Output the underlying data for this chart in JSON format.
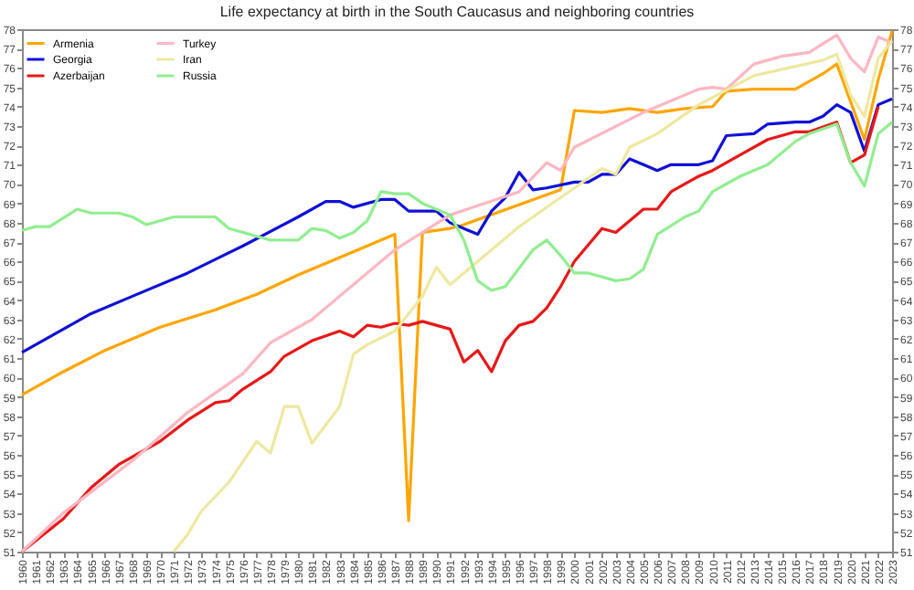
{
  "chart_data": {
    "type": "line",
    "title": "Life expectancy at birth in the South Caucasus and neighboring countries",
    "xlim": [
      1960,
      2023
    ],
    "xticks": [
      1960,
      1961,
      1962,
      1963,
      1964,
      1965,
      1966,
      1967,
      1968,
      1969,
      1970,
      1971,
      1972,
      1973,
      1974,
      1975,
      1976,
      1977,
      1978,
      1979,
      1980,
      1981,
      1982,
      1983,
      1984,
      1985,
      1986,
      1987,
      1988,
      1989,
      1990,
      1991,
      1992,
      1993,
      1994,
      1995,
      1996,
      1997,
      1998,
      1999,
      2000,
      2001,
      2002,
      2003,
      2004,
      2005,
      2006,
      2007,
      2008,
      2009,
      2010,
      2011,
      2012,
      2013,
      2014,
      2015,
      2016,
      2017,
      2018,
      2019,
      2020,
      2021,
      2022,
      2023
    ],
    "ylim": [
      51,
      78
    ],
    "yticks": [
      51,
      52,
      53,
      54,
      55,
      56,
      57,
      58,
      59,
      60,
      61,
      62,
      63,
      64,
      65,
      66,
      67,
      68,
      69,
      70,
      71,
      72,
      73,
      74,
      75,
      76,
      77,
      78
    ],
    "y2lim": [
      51,
      78
    ],
    "y2ticks": [
      51,
      52,
      53,
      54,
      55,
      56,
      57,
      58,
      59,
      60,
      61,
      62,
      63,
      64,
      65,
      66,
      67,
      68,
      69,
      70,
      71,
      72,
      73,
      74,
      75,
      76,
      77,
      78
    ],
    "legend": "top left",
    "series": [
      {
        "name": "Armenia",
        "color": "#ffa500",
        "x": [
          1960,
          1963,
          1966,
          1970,
          1974,
          1977,
          1980,
          1983,
          1985,
          1987,
          1988,
          1989,
          1991,
          1992,
          1999,
          2000,
          2002,
          2004,
          2006,
          2008,
          2010,
          2011,
          2013,
          2016,
          2017,
          2018,
          2019,
          2021,
          2022,
          2023
        ],
        "values": [
          59.1,
          60.3,
          61.4,
          62.6,
          63.5,
          64.3,
          65.3,
          66.2,
          66.8,
          67.4,
          52.6,
          67.5,
          67.7,
          67.9,
          69.7,
          73.8,
          73.7,
          73.9,
          73.7,
          73.9,
          74.0,
          74.8,
          74.9,
          74.9,
          75.3,
          75.7,
          76.2,
          72.3,
          75.4,
          77.9
        ]
      },
      {
        "name": "Georgia",
        "color": "#1010d8",
        "x": [
          1960,
          1965,
          1968,
          1972,
          1976,
          1980,
          1982,
          1983,
          1984,
          1986,
          1987,
          1988,
          1990,
          1991,
          1993,
          1994,
          1995,
          1996,
          1997,
          1998,
          2000,
          2001,
          2002,
          2003,
          2004,
          2005,
          2006,
          2007,
          2009,
          2010,
          2011,
          2013,
          2014,
          2016,
          2017,
          2018,
          2019,
          2020,
          2021,
          2022,
          2023
        ],
        "values": [
          61.3,
          63.3,
          64.2,
          65.4,
          66.8,
          68.3,
          69.1,
          69.1,
          68.8,
          69.2,
          69.2,
          68.6,
          68.6,
          68.0,
          67.4,
          68.6,
          69.3,
          70.6,
          69.7,
          69.8,
          70.1,
          70.1,
          70.5,
          70.5,
          71.3,
          71.0,
          70.7,
          71.0,
          71.0,
          71.2,
          72.5,
          72.6,
          73.1,
          73.2,
          73.2,
          73.5,
          74.1,
          73.7,
          71.7,
          74.1,
          74.4
        ]
      },
      {
        "name": "Azerbaijan",
        "color": "#e81818",
        "x": [
          1960,
          1963,
          1965,
          1967,
          1970,
          1972,
          1974,
          1975,
          1976,
          1978,
          1979,
          1981,
          1983,
          1984,
          1985,
          1986,
          1987,
          1988,
          1989,
          1990,
          1991,
          1992,
          1993,
          1994,
          1995,
          1996,
          1997,
          1998,
          1999,
          2000,
          2002,
          2003,
          2005,
          2006,
          2007,
          2009,
          2010,
          2012,
          2014,
          2016,
          2017,
          2019,
          2020,
          2021,
          2022
        ],
        "values": [
          51.0,
          52.7,
          54.3,
          55.5,
          56.7,
          57.8,
          58.7,
          58.8,
          59.4,
          60.3,
          61.1,
          61.9,
          62.4,
          62.1,
          62.7,
          62.6,
          62.8,
          62.7,
          62.9,
          62.7,
          62.5,
          60.8,
          61.4,
          60.3,
          61.9,
          62.7,
          62.9,
          63.6,
          64.7,
          66.0,
          67.7,
          67.5,
          68.7,
          68.7,
          69.6,
          70.4,
          70.7,
          71.5,
          72.3,
          72.7,
          72.7,
          73.2,
          71.1,
          71.5,
          74.0
        ]
      },
      {
        "name": "Turkey",
        "color": "#ffb6c1",
        "x": [
          1960,
          1963,
          1968,
          1972,
          1976,
          1978,
          1981,
          1983,
          1987,
          1991,
          1996,
          1998,
          1999,
          2000,
          2005,
          2009,
          2010,
          2011,
          2013,
          2015,
          2017,
          2019,
          2020,
          2021,
          2022,
          2023
        ],
        "values": [
          51.0,
          53.0,
          55.7,
          58.2,
          60.2,
          61.8,
          63.0,
          64.2,
          66.6,
          68.4,
          69.6,
          71.1,
          70.7,
          71.9,
          73.7,
          74.9,
          75.0,
          74.9,
          76.2,
          76.6,
          76.8,
          77.7,
          76.5,
          75.8,
          77.6,
          77.3
        ]
      },
      {
        "name": "Iran",
        "color": "#eee8a0",
        "x": [
          1971,
          1972,
          1973,
          1975,
          1977,
          1978,
          1979,
          1980,
          1981,
          1983,
          1984,
          1985,
          1987,
          1988,
          1989,
          1990,
          1991,
          1996,
          2000,
          2002,
          2003,
          2004,
          2006,
          2009,
          2013,
          2018,
          2019,
          2020,
          2021,
          2022,
          2023
        ],
        "values": [
          51.0,
          51.9,
          53.1,
          54.6,
          56.7,
          56.1,
          58.5,
          58.5,
          56.6,
          58.5,
          61.2,
          61.7,
          62.4,
          63.3,
          64.2,
          65.7,
          64.8,
          67.8,
          69.8,
          70.8,
          70.5,
          71.9,
          72.6,
          74.1,
          75.6,
          76.4,
          76.7,
          74.6,
          73.5,
          76.5,
          77.4
        ]
      },
      {
        "name": "Russia",
        "color": "#90ee90",
        "x": [
          1960,
          1961,
          1962,
          1964,
          1965,
          1967,
          1968,
          1969,
          1971,
          1974,
          1975,
          1977,
          1978,
          1980,
          1981,
          1982,
          1983,
          1984,
          1985,
          1986,
          1987,
          1988,
          1989,
          1991,
          1992,
          1993,
          1994,
          1995,
          1997,
          1998,
          1999,
          2000,
          2001,
          2003,
          2004,
          2005,
          2006,
          2008,
          2009,
          2010,
          2012,
          2014,
          2016,
          2017,
          2019,
          2020,
          2021,
          2022,
          2023
        ],
        "values": [
          67.6,
          67.8,
          67.8,
          68.7,
          68.5,
          68.5,
          68.3,
          67.9,
          68.3,
          68.3,
          67.7,
          67.3,
          67.1,
          67.1,
          67.7,
          67.6,
          67.2,
          67.5,
          68.1,
          69.6,
          69.5,
          69.5,
          69.0,
          68.4,
          67.1,
          65.0,
          64.5,
          64.7,
          66.6,
          67.1,
          66.3,
          65.4,
          65.4,
          65.0,
          65.1,
          65.6,
          67.4,
          68.3,
          68.6,
          69.6,
          70.4,
          71.0,
          72.2,
          72.6,
          73.1,
          71.1,
          69.9,
          72.6,
          73.2
        ]
      }
    ]
  }
}
